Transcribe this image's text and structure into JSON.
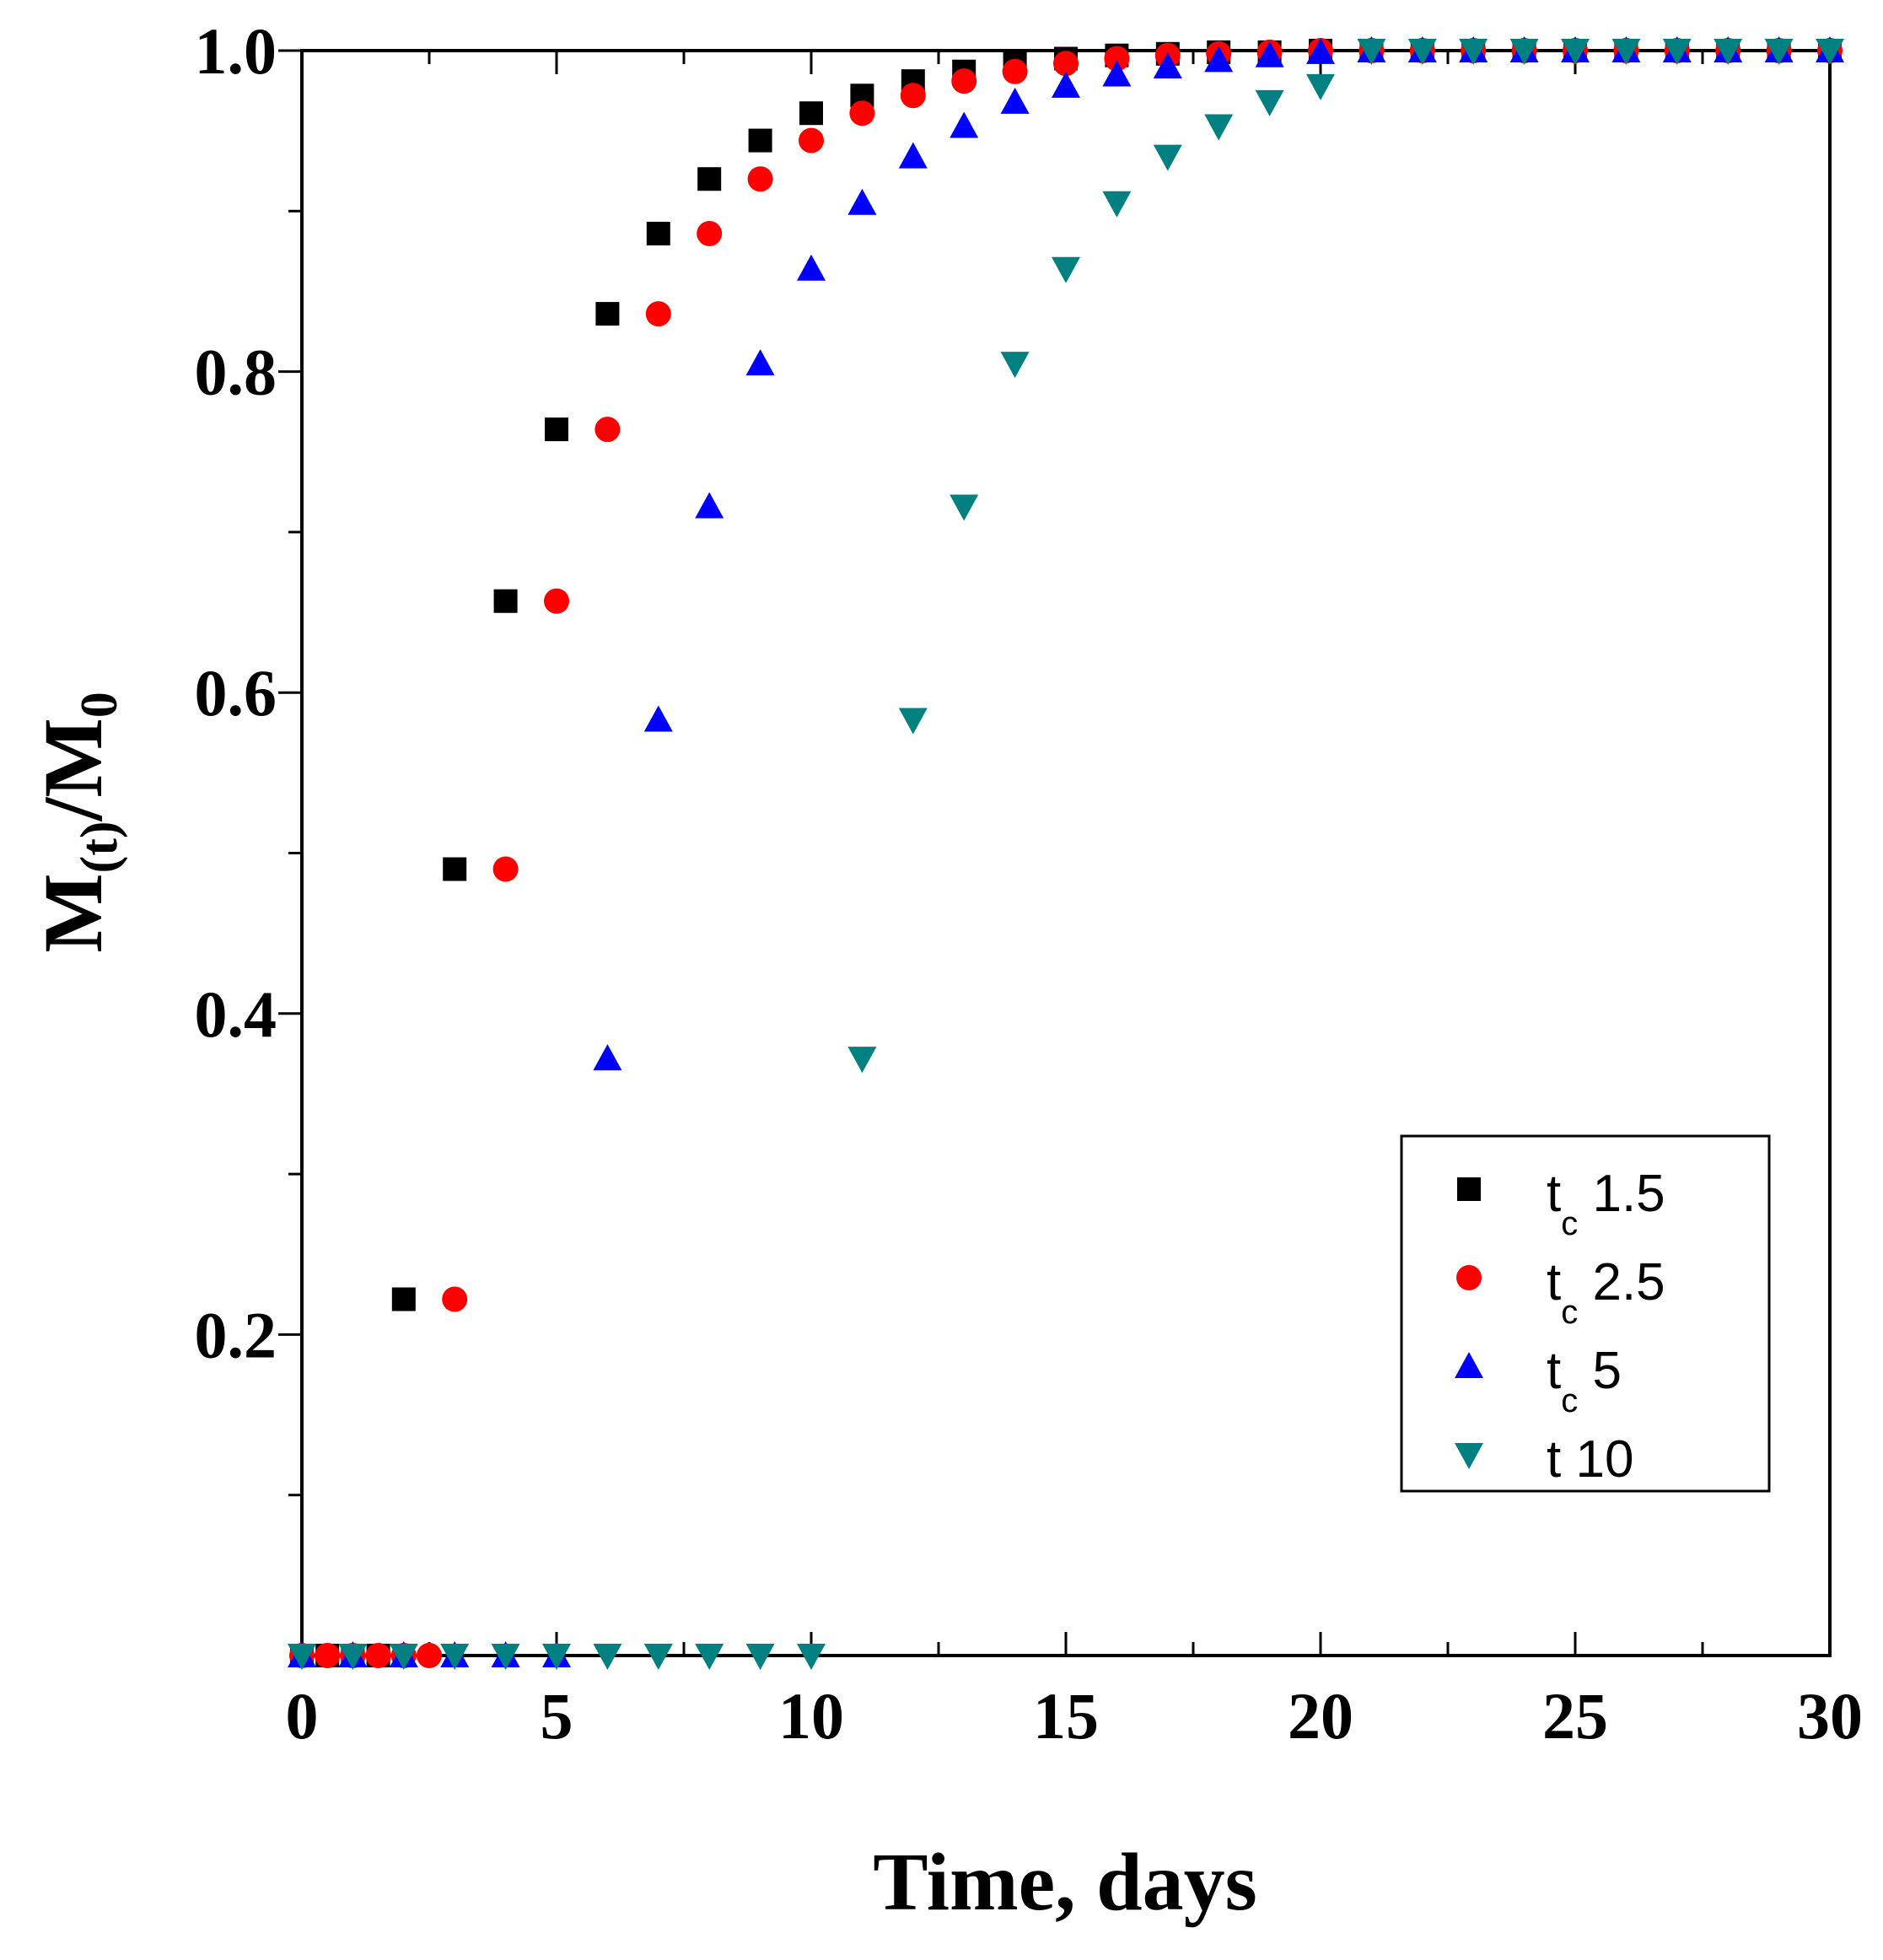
{
  "chart_data": {
    "type": "scatter",
    "title": "",
    "xlabel": "Time, days",
    "ylabel": {
      "main": "M",
      "sub1": "(t)",
      "sep": "/M",
      "sub2": "0"
    },
    "xlim": [
      0,
      30
    ],
    "ylim": [
      0,
      1.0
    ],
    "x_ticks": [
      0,
      5,
      10,
      15,
      20,
      25,
      30
    ],
    "y_ticks": [
      0.2,
      0.4,
      0.6,
      0.8,
      1.0
    ],
    "y_tick_labels": [
      "0.2",
      "0.4",
      "0.6",
      "0.8",
      "1.0"
    ],
    "grid": false,
    "legend_position": "bottom-right",
    "series": [
      {
        "name": "t c 1.5",
        "legend": {
          "main": "t",
          "sub": "c",
          "value": "1.5"
        },
        "marker": "square",
        "color": "#000000",
        "points": [
          [
            0,
            0
          ],
          [
            0.5,
            0
          ],
          [
            1,
            0
          ],
          [
            1.5,
            0
          ],
          [
            2,
            0.222
          ],
          [
            3,
            0.49
          ],
          [
            4,
            0.657
          ],
          [
            5,
            0.764
          ],
          [
            6,
            0.836
          ],
          [
            7,
            0.886
          ],
          [
            8,
            0.92
          ],
          [
            9,
            0.944
          ],
          [
            10,
            0.961
          ],
          [
            11,
            0.972
          ],
          [
            12,
            0.981
          ],
          [
            13,
            0.987
          ],
          [
            14,
            0.992
          ],
          [
            15,
            0.995
          ],
          [
            16,
            0.997
          ],
          [
            17,
            0.998
          ],
          [
            18,
            0.999
          ],
          [
            19,
            0.999
          ],
          [
            20,
            1.0
          ],
          [
            21,
            1.0
          ],
          [
            22,
            1.0
          ],
          [
            23,
            1.0
          ],
          [
            24,
            1.0
          ],
          [
            25,
            1.0
          ],
          [
            26,
            1.0
          ],
          [
            27,
            1.0
          ],
          [
            28,
            1.0
          ],
          [
            29,
            1.0
          ],
          [
            30,
            1.0
          ]
        ]
      },
      {
        "name": "t c 2.5",
        "legend": {
          "main": "t",
          "sub": "c",
          "value": "2.5"
        },
        "marker": "circle",
        "color": "#ff0000",
        "points": [
          [
            0,
            0
          ],
          [
            0.5,
            0
          ],
          [
            1,
            0
          ],
          [
            1.5,
            0
          ],
          [
            2,
            0
          ],
          [
            2.5,
            0
          ],
          [
            3,
            0.222
          ],
          [
            4,
            0.49
          ],
          [
            5,
            0.657
          ],
          [
            6,
            0.764
          ],
          [
            7,
            0.836
          ],
          [
            8,
            0.886
          ],
          [
            9,
            0.92
          ],
          [
            10,
            0.944
          ],
          [
            11,
            0.961
          ],
          [
            12,
            0.972
          ],
          [
            13,
            0.981
          ],
          [
            14,
            0.987
          ],
          [
            15,
            0.992
          ],
          [
            16,
            0.995
          ],
          [
            17,
            0.997
          ],
          [
            18,
            0.998
          ],
          [
            19,
            0.999
          ],
          [
            20,
            1.0
          ],
          [
            21,
            1.0
          ],
          [
            22,
            1.0
          ],
          [
            23,
            1.0
          ],
          [
            24,
            1.0
          ],
          [
            25,
            1.0
          ],
          [
            26,
            1.0
          ],
          [
            27,
            1.0
          ],
          [
            28,
            1.0
          ],
          [
            29,
            1.0
          ],
          [
            30,
            1.0
          ]
        ]
      },
      {
        "name": "t c 5",
        "legend": {
          "main": "t",
          "sub": "c",
          "value": "5"
        },
        "marker": "triangle-up",
        "color": "#0000ff",
        "points": [
          [
            0,
            0
          ],
          [
            1,
            0
          ],
          [
            2,
            0
          ],
          [
            3,
            0
          ],
          [
            4,
            0
          ],
          [
            5,
            0
          ],
          [
            6,
            0.372
          ],
          [
            7,
            0.583
          ],
          [
            8,
            0.716
          ],
          [
            9,
            0.805
          ],
          [
            10,
            0.864
          ],
          [
            11,
            0.905
          ],
          [
            12,
            0.934
          ],
          [
            13,
            0.953
          ],
          [
            14,
            0.968
          ],
          [
            15,
            0.978
          ],
          [
            16,
            0.985
          ],
          [
            17,
            0.99
          ],
          [
            18,
            0.994
          ],
          [
            19,
            0.997
          ],
          [
            20,
            0.999
          ],
          [
            21,
            1.0
          ],
          [
            22,
            1.0
          ],
          [
            23,
            1.0
          ],
          [
            24,
            1.0
          ],
          [
            25,
            1.0
          ],
          [
            26,
            1.0
          ],
          [
            27,
            1.0
          ],
          [
            28,
            1.0
          ],
          [
            29,
            1.0
          ],
          [
            30,
            1.0
          ]
        ]
      },
      {
        "name": "t 10",
        "legend": {
          "main": "t",
          "sub": "",
          "value": "10"
        },
        "marker": "triangle-down",
        "color": "#008080",
        "points": [
          [
            0,
            0
          ],
          [
            1,
            0
          ],
          [
            2,
            0
          ],
          [
            3,
            0
          ],
          [
            4,
            0
          ],
          [
            5,
            0
          ],
          [
            6,
            0
          ],
          [
            7,
            0
          ],
          [
            8,
            0
          ],
          [
            9,
            0
          ],
          [
            10,
            0
          ],
          [
            11,
            0.372
          ],
          [
            12,
            0.583
          ],
          [
            13,
            0.716
          ],
          [
            14,
            0.805
          ],
          [
            15,
            0.864
          ],
          [
            16,
            0.905
          ],
          [
            17,
            0.934
          ],
          [
            18,
            0.953
          ],
          [
            19,
            0.968
          ],
          [
            20,
            0.978
          ],
          [
            21,
            1.0
          ],
          [
            22,
            1.0
          ],
          [
            23,
            1.0
          ],
          [
            24,
            1.0
          ],
          [
            25,
            1.0
          ],
          [
            26,
            1.0
          ],
          [
            27,
            1.0
          ],
          [
            28,
            1.0
          ],
          [
            29,
            1.0
          ],
          [
            30,
            1.0
          ]
        ]
      }
    ]
  }
}
